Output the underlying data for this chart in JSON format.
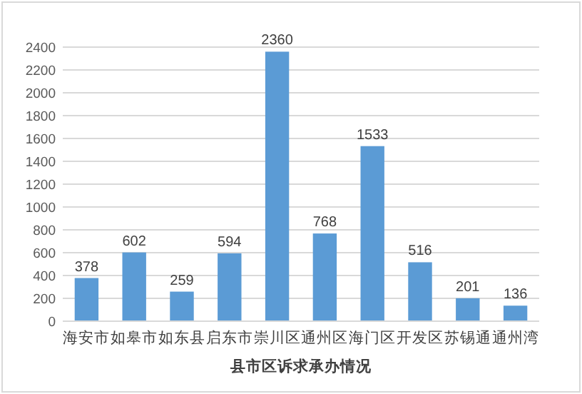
{
  "chart_data": {
    "type": "bar",
    "xlabel": "县市区诉求承办情况",
    "categories": [
      "海安市",
      "如皋市",
      "如东县",
      "启东市",
      "崇川区",
      "通州区",
      "海门区",
      "开发区",
      "苏锡通",
      "通州湾"
    ],
    "values": [
      378,
      602,
      259,
      594,
      2360,
      768,
      1533,
      516,
      201,
      136
    ],
    "color": "#5b9bd5",
    "ylim": [
      0,
      2400
    ],
    "yticks": [
      0,
      200,
      400,
      600,
      800,
      1000,
      1200,
      1400,
      1600,
      1800,
      2000,
      2200,
      2400
    ],
    "grid": "y",
    "data_labels": true
  }
}
